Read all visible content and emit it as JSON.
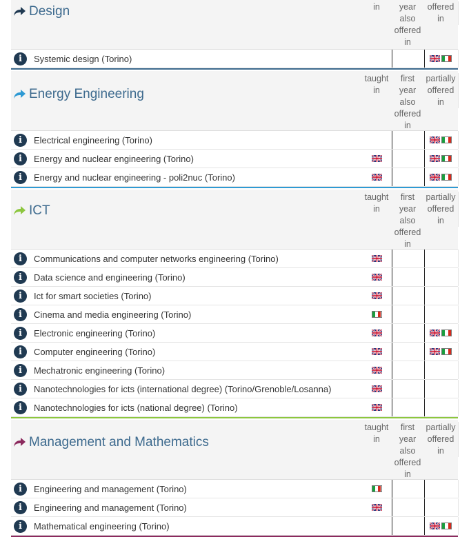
{
  "colors": {
    "design_accent": "#3d6a8e",
    "energy_accent": "#2e9ad4",
    "ict_accent": "#8cc63e",
    "mgmt_accent": "#8c2a5e",
    "title_text": "#3d6a8e"
  },
  "column_headers": {
    "taught_in": "taught\nin",
    "first_year": "first\nyear\nalso\noffered\nin",
    "partially_offered": "partially\noffered\nin"
  },
  "column_headers_partial_top": {
    "taught_in": "in",
    "first_year": "year\nalso\noffered\nin",
    "partially_offered": "offered\nin"
  },
  "sections": [
    {
      "title": "Design",
      "icon": "arrow-right-icon",
      "rows": [
        {
          "name": "Systemic design (Torino)",
          "taught_in": "",
          "first_year": "",
          "partially": "en+it"
        }
      ]
    },
    {
      "title": "Energy Engineering",
      "icon": "arrow-right-icon",
      "rows": [
        {
          "name": "Electrical engineering (Torino)",
          "taught_in": "",
          "first_year": "",
          "partially": "en+it"
        },
        {
          "name": "Energy and nuclear engineering (Torino)",
          "taught_in": "en",
          "first_year": "",
          "partially": "en+it"
        },
        {
          "name": "Energy and nuclear engineering - poli2nuc (Torino)",
          "taught_in": "en",
          "first_year": "",
          "partially": "en+it"
        }
      ]
    },
    {
      "title": "ICT",
      "icon": "arrow-right-icon",
      "rows": [
        {
          "name": "Communications and computer networks engineering (Torino)",
          "taught_in": "en",
          "first_year": "",
          "partially": ""
        },
        {
          "name": "Data science and engineering (Torino)",
          "taught_in": "en",
          "first_year": "",
          "partially": ""
        },
        {
          "name": "Ict for smart societies (Torino)",
          "taught_in": "en",
          "first_year": "",
          "partially": ""
        },
        {
          "name": "Cinema and media engineering (Torino)",
          "taught_in": "it",
          "first_year": "",
          "partially": ""
        },
        {
          "name": "Electronic engineering (Torino)",
          "taught_in": "en",
          "first_year": "",
          "partially": "en+it"
        },
        {
          "name": "Computer engineering (Torino)",
          "taught_in": "en",
          "first_year": "",
          "partially": "en+it"
        },
        {
          "name": "Mechatronic engineering (Torino)",
          "taught_in": "en",
          "first_year": "",
          "partially": ""
        },
        {
          "name": "Nanotechnologies for icts (international degree) (Torino/Grenoble/Losanna)",
          "taught_in": "en",
          "first_year": "",
          "partially": ""
        },
        {
          "name": "Nanotechnologies for icts (national degree) (Torino)",
          "taught_in": "en",
          "first_year": "",
          "partially": ""
        }
      ]
    },
    {
      "title": "Management and Mathematics",
      "icon": "arrow-right-icon",
      "rows": [
        {
          "name": "Engineering and management (Torino)",
          "taught_in": "it",
          "first_year": "",
          "partially": ""
        },
        {
          "name": "Engineering and management (Torino)",
          "taught_in": "en",
          "first_year": "",
          "partially": ""
        },
        {
          "name": "Mathematical engineering (Torino)",
          "taught_in": "",
          "first_year": "",
          "partially": "en+it"
        }
      ]
    }
  ]
}
